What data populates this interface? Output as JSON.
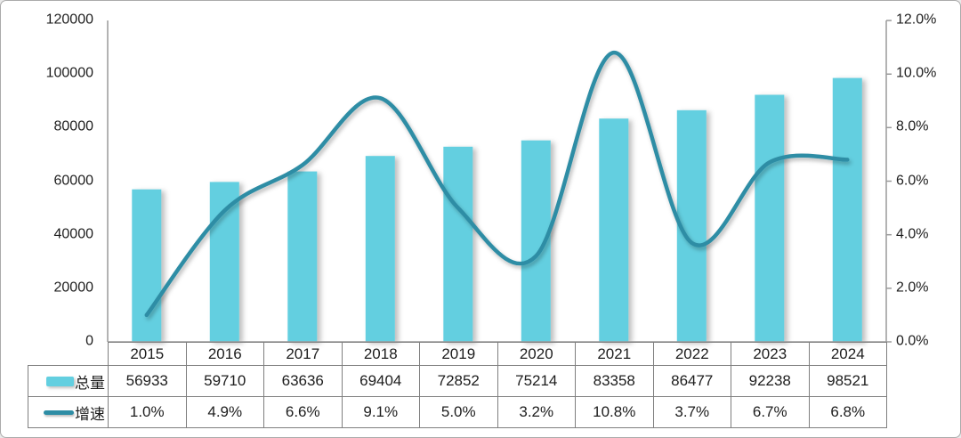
{
  "chart_data": {
    "type": "combo-bar-line",
    "categories": [
      "2015",
      "2016",
      "2017",
      "2018",
      "2019",
      "2020",
      "2021",
      "2022",
      "2023",
      "2024"
    ],
    "series": [
      {
        "name": "总量",
        "type": "bar",
        "axis": "left",
        "color": "#63cfe0",
        "values": [
          56933,
          59710,
          63636,
          69404,
          72852,
          75214,
          83358,
          86477,
          92238,
          98521
        ],
        "labels": [
          "56933",
          "59710",
          "63636",
          "69404",
          "72852",
          "75214",
          "83358",
          "86477",
          "92238",
          "98521"
        ]
      },
      {
        "name": "增速",
        "type": "line",
        "smooth": true,
        "axis": "right",
        "color": "#2e8da5",
        "values": [
          1.0,
          4.9,
          6.6,
          9.1,
          5.0,
          3.2,
          10.8,
          3.7,
          6.7,
          6.8
        ],
        "labels": [
          "1.0%",
          "4.9%",
          "6.6%",
          "9.1%",
          "5.0%",
          "3.2%",
          "10.8%",
          "3.7%",
          "6.7%",
          "6.8%"
        ]
      }
    ],
    "left_axis": {
      "min": 0,
      "max": 120000,
      "step": 20000,
      "tick_values": [
        0,
        20000,
        40000,
        60000,
        80000,
        100000,
        120000
      ],
      "tick_labels": [
        "0",
        "20000",
        "40000",
        "60000",
        "80000",
        "100000",
        "120000"
      ]
    },
    "right_axis": {
      "min": 0,
      "max": 12,
      "step": 2,
      "tick_values": [
        0,
        2,
        4,
        6,
        8,
        10,
        12
      ],
      "tick_labels": [
        "0.0%",
        "2.0%",
        "4.0%",
        "6.0%",
        "8.0%",
        "10.0%",
        "12.0%"
      ]
    },
    "grid": false,
    "legend_position": "data-table-left",
    "title": "",
    "axis_line_color": "#9a9a9a",
    "table_border_color": "#7f7f7f"
  }
}
